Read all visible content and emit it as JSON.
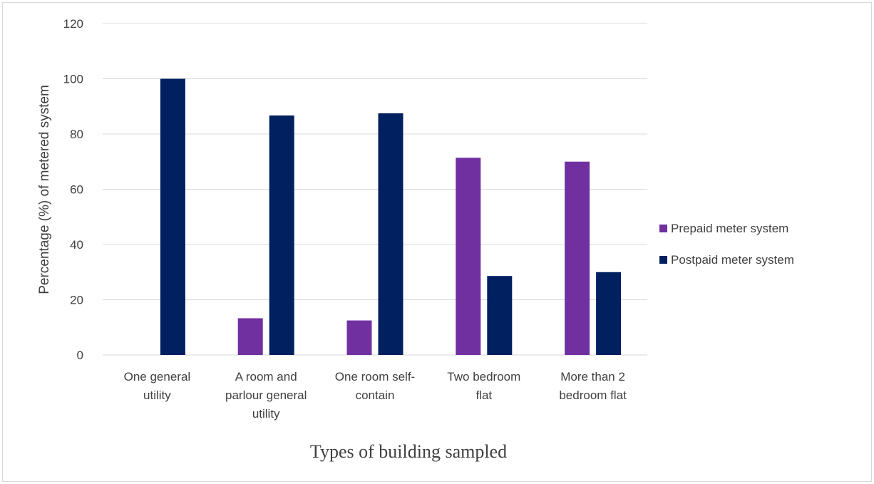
{
  "chart_data": {
    "type": "bar",
    "title": "",
    "xlabel": "Types of building sampled",
    "ylabel": "Percentage (%) of metered system",
    "ylim": [
      0,
      120
    ],
    "yticks": [
      0,
      20,
      40,
      60,
      80,
      100,
      120
    ],
    "grid": true,
    "legend_position": "right",
    "categories": [
      [
        "One general",
        "utility"
      ],
      [
        "A room and",
        "parlour general",
        "utility"
      ],
      [
        "One room self-",
        "contain"
      ],
      [
        "Two bedroom",
        "flat"
      ],
      [
        "More than 2",
        "bedroom flat"
      ]
    ],
    "series": [
      {
        "name": "Prepaid meter system",
        "color": "#7030a0",
        "values": [
          0,
          13.3,
          12.5,
          71.4,
          70
        ]
      },
      {
        "name": "Postpaid meter system",
        "color": "#002060",
        "values": [
          100,
          86.7,
          87.5,
          28.6,
          30
        ]
      }
    ]
  }
}
